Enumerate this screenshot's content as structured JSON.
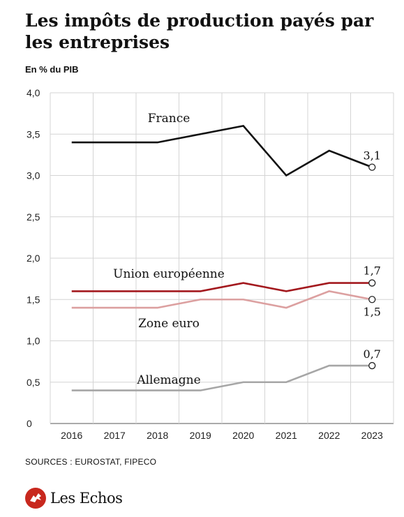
{
  "title": "Les impôts de production payés par les entreprises",
  "subtitle": "En % du PIB",
  "sources": "SOURCES : EUROSTAT, FIPECO",
  "logo": {
    "text": "Les Echos",
    "icon": "les-echos-logo-icon",
    "color": "#c8281e"
  },
  "chart_data": {
    "type": "line",
    "x": [
      "2016",
      "2017",
      "2018",
      "2019",
      "2020",
      "2021",
      "2022",
      "2023"
    ],
    "yticks": [
      "0",
      "0,5",
      "1,0",
      "1,5",
      "2,0",
      "2,5",
      "3,0",
      "3,5",
      "4,0"
    ],
    "ylim": [
      0,
      4
    ],
    "grid": true,
    "series": [
      {
        "name": "France",
        "color": "#111111",
        "values": [
          3.4,
          3.4,
          3.4,
          3.5,
          3.6,
          3.0,
          3.3,
          3.1
        ],
        "end_label": "3,1"
      },
      {
        "name": "Union européenne",
        "color": "#a3191e",
        "values": [
          1.6,
          1.6,
          1.6,
          1.6,
          1.7,
          1.6,
          1.7,
          1.7
        ],
        "end_label": "1,7"
      },
      {
        "name": "Zone euro",
        "color": "#dca0a0",
        "values": [
          1.4,
          1.4,
          1.4,
          1.5,
          1.5,
          1.4,
          1.6,
          1.5
        ],
        "end_label": "1,5"
      },
      {
        "name": "Allemagne",
        "color": "#a6a6a6",
        "values": [
          0.4,
          0.4,
          0.4,
          0.4,
          0.5,
          0.5,
          0.7,
          0.7
        ],
        "end_label": "0,7"
      }
    ]
  }
}
